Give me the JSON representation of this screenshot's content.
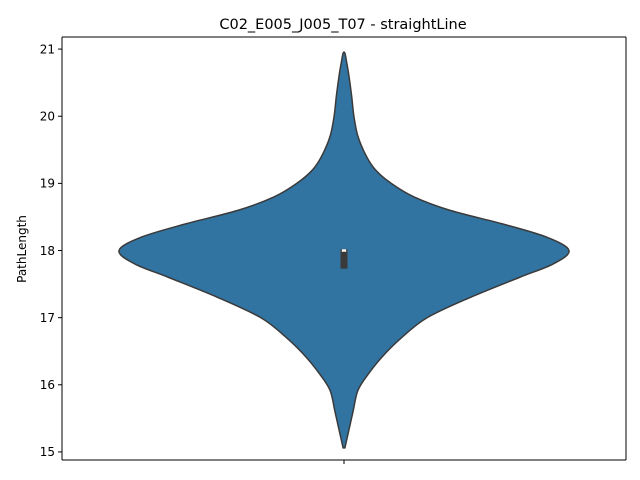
{
  "chart_data": {
    "type": "violin",
    "title": "C02_E005_J005_T07 - straightLine",
    "xlabel": "",
    "ylabel": "PathLength",
    "ylim": [
      14.88,
      21.18
    ],
    "yticks": [
      15,
      16,
      17,
      18,
      19,
      20,
      21
    ],
    "ytick_labels": [
      "15",
      "16",
      "17",
      "18",
      "19",
      "20",
      "21"
    ],
    "categories": [
      ""
    ],
    "grid": false,
    "colors": {
      "violin_fill": "#3274a1",
      "violin_edge": "#3a3a3a",
      "box": "#3a3a3a",
      "median": "#ffffff"
    },
    "violin": {
      "min": 15.06,
      "max": 20.94,
      "q1": 17.73,
      "median": 18.0,
      "q3": 18.02,
      "density_profile": [
        [
          15.06,
          0.004
        ],
        [
          15.3,
          0.02
        ],
        [
          15.6,
          0.04
        ],
        [
          15.9,
          0.06
        ],
        [
          16.1,
          0.095
        ],
        [
          16.4,
          0.165
        ],
        [
          16.7,
          0.255
        ],
        [
          17.0,
          0.37
        ],
        [
          17.3,
          0.56
        ],
        [
          17.6,
          0.78
        ],
        [
          17.8,
          0.93
        ],
        [
          18.0,
          1.0
        ],
        [
          18.2,
          0.9
        ],
        [
          18.4,
          0.7
        ],
        [
          18.6,
          0.47
        ],
        [
          18.8,
          0.31
        ],
        [
          19.0,
          0.21
        ],
        [
          19.2,
          0.14
        ],
        [
          19.4,
          0.1
        ],
        [
          19.7,
          0.062
        ],
        [
          20.0,
          0.044
        ],
        [
          20.3,
          0.034
        ],
        [
          20.6,
          0.022
        ],
        [
          20.8,
          0.012
        ],
        [
          20.94,
          0.004
        ]
      ]
    }
  }
}
